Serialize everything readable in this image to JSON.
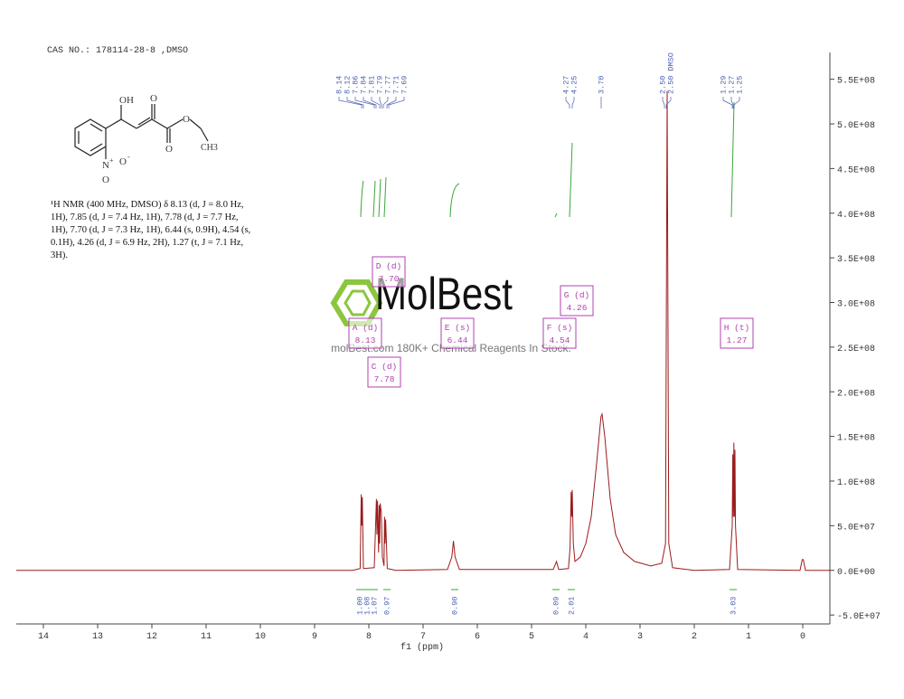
{
  "header": {
    "cas": "CAS NO.: 178114-28-8 ,DMSO"
  },
  "structure": {
    "oh": "OH",
    "o_keto": "O",
    "o_ester_carbonyl": "O",
    "o_ester": "O",
    "ch3": "CH3",
    "n": "N",
    "n_charge": "+",
    "o_nitro1": "O",
    "o_charge": "-",
    "o_nitro2": "O"
  },
  "nmr_text": [
    "¹H NMR (400 MHz, DMSO) δ 8.13 (d, J = 8.0 Hz,",
    "1H), 7.85 (d, J = 7.4 Hz, 1H), 7.78 (d, J = 7.7 Hz,",
    "1H), 7.70 (d, J = 7.3 Hz, 1H), 6.44 (s, 0.9H), 4.54 (s,",
    "0.1H), 4.26 (d, J = 6.9 Hz, 2H), 1.27 (t, J = 7.1 Hz,",
    "3H)."
  ],
  "watermark": {
    "logo": "MolBest",
    "tagline": "molBest.com 180K+ Chemical Reagents In Stock."
  },
  "chart_data": {
    "type": "line",
    "x_label": "f1 (ppm)",
    "color": "#9b1b1b",
    "x": [
      14.5,
      8.3,
      8.16,
      8.14,
      8.13,
      8.12,
      8.1,
      7.9,
      7.86,
      7.85,
      7.84,
      7.82,
      7.81,
      7.8,
      7.79,
      7.77,
      7.75,
      7.72,
      7.71,
      7.7,
      7.69,
      7.66,
      7.5,
      6.55,
      6.47,
      6.44,
      6.41,
      6.33,
      4.6,
      4.54,
      4.5,
      4.32,
      4.29,
      4.27,
      4.26,
      4.25,
      4.23,
      4.2,
      4.1,
      4.0,
      3.9,
      3.8,
      3.72,
      3.7,
      3.65,
      3.55,
      3.45,
      3.3,
      3.1,
      2.8,
      2.6,
      2.53,
      2.5,
      2.47,
      2.4,
      2.0,
      1.35,
      1.3,
      1.29,
      1.28,
      1.27,
      1.26,
      1.25,
      1.24,
      1.2,
      0.05,
      0.01,
      -0.01,
      -0.05,
      -0.5
    ],
    "values": [
      0,
      0,
      2000000,
      85000000,
      50000000,
      82000000,
      2000000,
      3000000,
      80000000,
      40000000,
      78000000,
      20000000,
      73000000,
      30000000,
      75000000,
      65000000,
      15000000,
      5000000,
      60000000,
      30000000,
      57000000,
      2000000,
      0,
      1000000,
      15000000,
      33000000,
      15000000,
      1000000,
      1000000,
      10000000,
      1000000,
      2000000,
      25000000,
      88000000,
      60000000,
      90000000,
      30000000,
      10000000,
      15000000,
      30000000,
      60000000,
      120000000,
      172000000,
      175000000,
      150000000,
      80000000,
      40000000,
      20000000,
      10000000,
      5000000,
      8000000,
      30000000,
      537000000,
      30000000,
      3000000,
      0,
      1000000,
      50000000,
      130000000,
      60000000,
      143000000,
      60000000,
      135000000,
      50000000,
      1000000,
      0,
      12000000,
      12000000,
      0,
      0
    ],
    "xlim": [
      14.5,
      -0.5
    ],
    "xticks": [
      14,
      13,
      12,
      11,
      10,
      9,
      8,
      7,
      6,
      5,
      4,
      3,
      2,
      1,
      0
    ],
    "ylim": [
      -60000000,
      580000000
    ],
    "yticks": [
      {
        "value": 550000000,
        "label": "5.5E+08"
      },
      {
        "value": 500000000,
        "label": "5.0E+08"
      },
      {
        "value": 450000000,
        "label": "4.5E+08"
      },
      {
        "value": 400000000,
        "label": "4.0E+08"
      },
      {
        "value": 350000000,
        "label": "3.5E+08"
      },
      {
        "value": 300000000,
        "label": "3.0E+08"
      },
      {
        "value": 250000000,
        "label": "2.5E+08"
      },
      {
        "value": 200000000,
        "label": "2.0E+08"
      },
      {
        "value": 150000000,
        "label": "1.5E+08"
      },
      {
        "value": 100000000,
        "label": "1.0E+08"
      },
      {
        "value": 50000000,
        "label": "5.0E+07"
      },
      {
        "value": 0,
        "label": "0.0E+00"
      },
      {
        "value": -50000000,
        "label": "-5.0E+07"
      }
    ],
    "peak_labels": [
      "8.14",
      "8.12",
      "7.86",
      "7.84",
      "7.81",
      "7.79",
      "7.77",
      "7.71",
      "7.69",
      "4.27",
      "4.25",
      "3.70",
      "2.50",
      "2.50 DMSO",
      "1.29",
      "1.27",
      "1.25"
    ],
    "integrals": [
      "1.00",
      "1.08",
      "1.07",
      "0.97",
      "0.90",
      "0.09",
      "2.01",
      "3.03"
    ],
    "multiplets": [
      {
        "name": "D (d)",
        "shift": "7.70"
      },
      {
        "name": "A (d)",
        "shift": "8.13"
      },
      {
        "name": "C (d)",
        "shift": "7.78"
      },
      {
        "name": "E (s)",
        "shift": "6.44"
      },
      {
        "name": "F (s)",
        "shift": "4.54"
      },
      {
        "name": "G (d)",
        "shift": "4.26"
      },
      {
        "name": "H (t)",
        "shift": "1.27"
      }
    ]
  }
}
